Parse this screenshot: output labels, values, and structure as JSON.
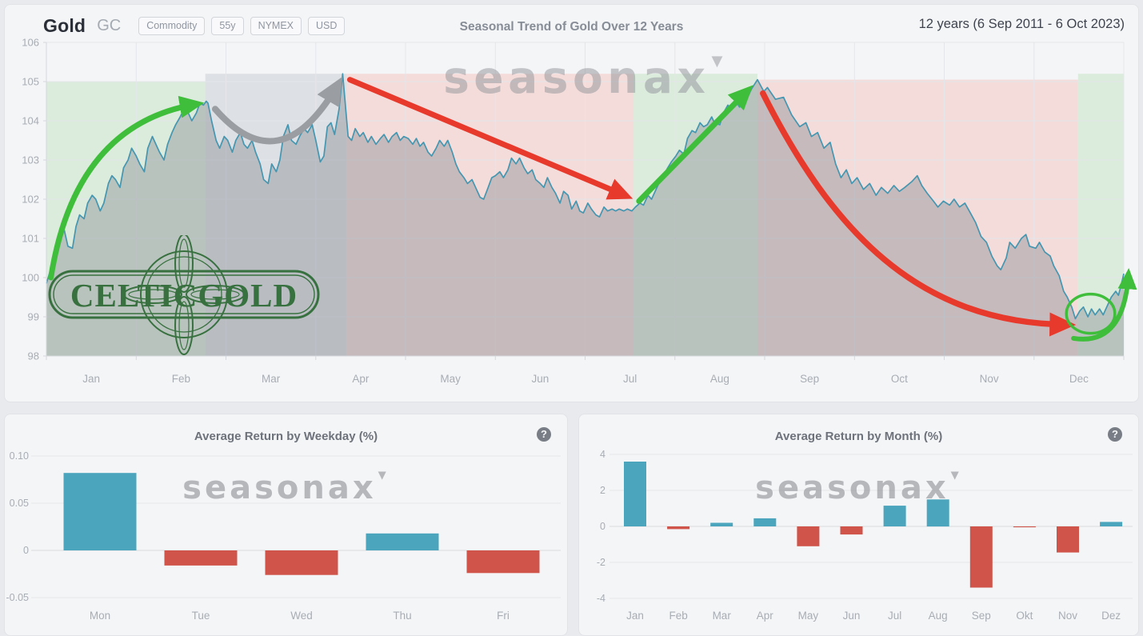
{
  "header": {
    "instrument": "Gold",
    "symbol": "GC",
    "badges": [
      "Commodity",
      "55y",
      "NYMEX",
      "USD"
    ],
    "title": "Seasonal Trend of Gold Over 12 Years",
    "range_label": "12 years (6 Sep 2011 - 6 Oct 2023)"
  },
  "watermarks": {
    "seasonax": "seasonax",
    "celticgold": "CELTICGOLD"
  },
  "colors": {
    "line": "#4596b0",
    "area": "rgba(125,132,140,0.38)",
    "band_green": "rgba(173,219,170,0.35)",
    "band_gray": "rgba(183,188,198,0.38)",
    "band_red": "rgba(244,180,172,0.38)",
    "arrow_green": "#3fbe3b",
    "arrow_gray": "#9a9da1",
    "arrow_red": "#e83a2c",
    "bar_positive": "#4aa5bd",
    "bar_negative": "#d0544a",
    "grid": "#e4e6ea",
    "axis": "#d5d8dc",
    "tick_text": "#a8adb4"
  },
  "chart_data": [
    {
      "type": "line",
      "title": "Seasonal Trend of Gold Over 12 Years",
      "x_labels": [
        "Jan",
        "Feb",
        "Mar",
        "Apr",
        "May",
        "Jun",
        "Jul",
        "Aug",
        "Sep",
        "Oct",
        "Nov",
        "Dec"
      ],
      "y_ticks": [
        106,
        105,
        104,
        103,
        102,
        101,
        100,
        99,
        98
      ],
      "ylim": [
        98,
        106
      ],
      "x_range_months": [
        0,
        12
      ],
      "bands": [
        {
          "from": 0.0,
          "to": 1.77,
          "top": 105.0,
          "color": "band_green"
        },
        {
          "from": 1.77,
          "to": 3.34,
          "top": 105.2,
          "color": "band_gray"
        },
        {
          "from": 3.34,
          "to": 6.54,
          "top": 105.2,
          "color": "band_red"
        },
        {
          "from": 6.54,
          "to": 7.92,
          "top": 105.2,
          "color": "band_green"
        },
        {
          "from": 7.92,
          "to": 11.49,
          "top": 105.05,
          "color": "band_red"
        },
        {
          "from": 11.49,
          "to": 12.0,
          "top": 105.2,
          "color": "band_green"
        }
      ],
      "arrows": [
        {
          "name": "jan-feb-rally",
          "shape": "quad",
          "color": "arrow_green",
          "width": 7,
          "pts": [
            [
              0.05,
              100.0
            ],
            [
              0.32,
              103.9
            ],
            [
              1.66,
              104.42
            ]
          ]
        },
        {
          "name": "feb-apr-consolidation",
          "shape": "quad",
          "color": "arrow_gray",
          "width": 8,
          "pts": [
            [
              1.88,
              104.3
            ],
            [
              2.6,
              102.4
            ],
            [
              3.24,
              104.9
            ]
          ]
        },
        {
          "name": "apr-jul-decline",
          "shape": "line",
          "color": "arrow_red",
          "width": 7,
          "pts": [
            [
              3.38,
              105.05
            ],
            [
              6.44,
              102.1
            ]
          ]
        },
        {
          "name": "jul-aug-rally",
          "shape": "line",
          "color": "arrow_green",
          "width": 7,
          "pts": [
            [
              6.6,
              101.95
            ],
            [
              7.8,
              104.75
            ]
          ]
        },
        {
          "name": "sep-dec-decline",
          "shape": "cubic",
          "color": "arrow_red",
          "width": 7.5,
          "pts": [
            [
              7.98,
              104.7
            ],
            [
              8.75,
              101.2
            ],
            [
              9.7,
              98.85
            ],
            [
              11.36,
              98.8
            ]
          ]
        },
        {
          "name": "dec-yearend-rally",
          "shape": "cubic",
          "color": "arrow_green",
          "width": 6,
          "pts": [
            [
              11.44,
              98.45
            ],
            [
              11.85,
              98.3
            ],
            [
              12.02,
              99.0
            ],
            [
              12.05,
              100.05
            ]
          ]
        }
      ],
      "highlight_ellipse": {
        "center": [
          11.63,
          99.08
        ],
        "rx_months": 0.27,
        "ry_units": 0.5,
        "color": "arrow_green",
        "width": 3.5
      },
      "points": [
        [
          0.0,
          99.85
        ],
        [
          0.06,
          100.3
        ],
        [
          0.11,
          100.9
        ],
        [
          0.15,
          101.1
        ],
        [
          0.2,
          101.2
        ],
        [
          0.24,
          100.8
        ],
        [
          0.29,
          100.75
        ],
        [
          0.33,
          101.3
        ],
        [
          0.37,
          101.6
        ],
        [
          0.42,
          101.5
        ],
        [
          0.46,
          101.9
        ],
        [
          0.51,
          102.1
        ],
        [
          0.55,
          102.0
        ],
        [
          0.6,
          101.7
        ],
        [
          0.64,
          101.9
        ],
        [
          0.69,
          102.4
        ],
        [
          0.73,
          102.6
        ],
        [
          0.77,
          102.5
        ],
        [
          0.82,
          102.3
        ],
        [
          0.86,
          102.8
        ],
        [
          0.91,
          103.0
        ],
        [
          0.95,
          103.3
        ],
        [
          1.0,
          103.1
        ],
        [
          1.04,
          102.9
        ],
        [
          1.09,
          102.7
        ],
        [
          1.13,
          103.3
        ],
        [
          1.18,
          103.6
        ],
        [
          1.22,
          103.4
        ],
        [
          1.26,
          103.2
        ],
        [
          1.31,
          103.0
        ],
        [
          1.35,
          103.4
        ],
        [
          1.4,
          103.7
        ],
        [
          1.44,
          103.9
        ],
        [
          1.49,
          104.1
        ],
        [
          1.53,
          104.3
        ],
        [
          1.58,
          104.2
        ],
        [
          1.62,
          104.0
        ],
        [
          1.67,
          104.2
        ],
        [
          1.71,
          104.45
        ],
        [
          1.75,
          104.4
        ],
        [
          1.78,
          104.5
        ],
        [
          1.8,
          104.45
        ],
        [
          1.84,
          104.0
        ],
        [
          1.89,
          103.5
        ],
        [
          1.93,
          103.3
        ],
        [
          1.98,
          103.6
        ],
        [
          2.02,
          103.5
        ],
        [
          2.07,
          103.2
        ],
        [
          2.11,
          103.5
        ],
        [
          2.16,
          103.7
        ],
        [
          2.2,
          103.4
        ],
        [
          2.24,
          103.3
        ],
        [
          2.29,
          103.5
        ],
        [
          2.33,
          103.2
        ],
        [
          2.38,
          102.9
        ],
        [
          2.42,
          102.5
        ],
        [
          2.47,
          102.4
        ],
        [
          2.51,
          102.9
        ],
        [
          2.56,
          102.7
        ],
        [
          2.6,
          103.0
        ],
        [
          2.64,
          103.6
        ],
        [
          2.69,
          103.9
        ],
        [
          2.73,
          103.5
        ],
        [
          2.78,
          103.4
        ],
        [
          2.82,
          103.6
        ],
        [
          2.87,
          103.8
        ],
        [
          2.91,
          103.7
        ],
        [
          2.96,
          103.9
        ],
        [
          3.0,
          103.5
        ],
        [
          3.05,
          102.95
        ],
        [
          3.09,
          103.1
        ],
        [
          3.13,
          103.85
        ],
        [
          3.17,
          103.95
        ],
        [
          3.21,
          103.65
        ],
        [
          3.26,
          104.3
        ],
        [
          3.3,
          105.2
        ],
        [
          3.33,
          104.4
        ],
        [
          3.36,
          103.6
        ],
        [
          3.4,
          103.5
        ],
        [
          3.44,
          103.8
        ],
        [
          3.49,
          103.6
        ],
        [
          3.53,
          103.7
        ],
        [
          3.58,
          103.45
        ],
        [
          3.62,
          103.6
        ],
        [
          3.67,
          103.4
        ],
        [
          3.72,
          103.55
        ],
        [
          3.76,
          103.65
        ],
        [
          3.81,
          103.45
        ],
        [
          3.85,
          103.6
        ],
        [
          3.9,
          103.7
        ],
        [
          3.94,
          103.5
        ],
        [
          3.98,
          103.6
        ],
        [
          4.03,
          103.55
        ],
        [
          4.08,
          103.4
        ],
        [
          4.12,
          103.55
        ],
        [
          4.16,
          103.35
        ],
        [
          4.2,
          103.45
        ],
        [
          4.25,
          103.2
        ],
        [
          4.29,
          103.1
        ],
        [
          4.34,
          103.3
        ],
        [
          4.38,
          103.5
        ],
        [
          4.43,
          103.35
        ],
        [
          4.47,
          103.5
        ],
        [
          4.52,
          103.2
        ],
        [
          4.56,
          102.9
        ],
        [
          4.6,
          102.7
        ],
        [
          4.65,
          102.55
        ],
        [
          4.69,
          102.4
        ],
        [
          4.74,
          102.5
        ],
        [
          4.78,
          102.3
        ],
        [
          4.83,
          102.05
        ],
        [
          4.87,
          102.0
        ],
        [
          4.92,
          102.3
        ],
        [
          4.96,
          102.55
        ],
        [
          5.0,
          102.6
        ],
        [
          5.05,
          102.7
        ],
        [
          5.09,
          102.55
        ],
        [
          5.14,
          102.75
        ],
        [
          5.18,
          103.05
        ],
        [
          5.23,
          102.9
        ],
        [
          5.27,
          103.05
        ],
        [
          5.32,
          102.8
        ],
        [
          5.36,
          102.65
        ],
        [
          5.41,
          102.75
        ],
        [
          5.45,
          102.5
        ],
        [
          5.5,
          102.4
        ],
        [
          5.54,
          102.3
        ],
        [
          5.58,
          102.55
        ],
        [
          5.63,
          102.3
        ],
        [
          5.67,
          102.15
        ],
        [
          5.72,
          101.9
        ],
        [
          5.76,
          102.2
        ],
        [
          5.81,
          102.1
        ],
        [
          5.85,
          101.75
        ],
        [
          5.9,
          101.95
        ],
        [
          5.94,
          101.7
        ],
        [
          5.98,
          101.65
        ],
        [
          6.03,
          101.9
        ],
        [
          6.07,
          101.75
        ],
        [
          6.12,
          101.6
        ],
        [
          6.16,
          101.55
        ],
        [
          6.21,
          101.8
        ],
        [
          6.25,
          101.7
        ],
        [
          6.3,
          101.75
        ],
        [
          6.34,
          101.7
        ],
        [
          6.38,
          101.75
        ],
        [
          6.43,
          101.7
        ],
        [
          6.47,
          101.75
        ],
        [
          6.52,
          101.7
        ],
        [
          6.56,
          101.8
        ],
        [
          6.61,
          101.9
        ],
        [
          6.65,
          101.85
        ],
        [
          6.7,
          102.1
        ],
        [
          6.74,
          102.0
        ],
        [
          6.83,
          102.45
        ],
        [
          6.92,
          102.8
        ],
        [
          6.96,
          102.95
        ],
        [
          7.01,
          103.1
        ],
        [
          7.05,
          103.25
        ],
        [
          7.1,
          103.15
        ],
        [
          7.14,
          103.55
        ],
        [
          7.19,
          103.75
        ],
        [
          7.23,
          103.7
        ],
        [
          7.28,
          103.95
        ],
        [
          7.32,
          103.85
        ],
        [
          7.36,
          103.9
        ],
        [
          7.41,
          104.1
        ],
        [
          7.44,
          103.95
        ],
        [
          7.5,
          103.9
        ],
        [
          7.54,
          104.2
        ],
        [
          7.59,
          104.4
        ],
        [
          7.63,
          104.3
        ],
        [
          7.68,
          104.5
        ],
        [
          7.72,
          104.35
        ],
        [
          7.77,
          104.45
        ],
        [
          7.81,
          104.6
        ],
        [
          7.85,
          104.8
        ],
        [
          7.92,
          105.05
        ],
        [
          7.99,
          104.75
        ],
        [
          8.03,
          104.85
        ],
        [
          8.12,
          104.55
        ],
        [
          8.21,
          104.6
        ],
        [
          8.3,
          104.15
        ],
        [
          8.39,
          103.85
        ],
        [
          8.46,
          103.95
        ],
        [
          8.52,
          103.6
        ],
        [
          8.59,
          103.7
        ],
        [
          8.66,
          103.3
        ],
        [
          8.73,
          103.45
        ],
        [
          8.79,
          102.9
        ],
        [
          8.85,
          102.55
        ],
        [
          8.91,
          102.75
        ],
        [
          8.97,
          102.4
        ],
        [
          9.03,
          102.55
        ],
        [
          9.1,
          102.25
        ],
        [
          9.17,
          102.4
        ],
        [
          9.24,
          102.1
        ],
        [
          9.3,
          102.3
        ],
        [
          9.37,
          102.15
        ],
        [
          9.44,
          102.35
        ],
        [
          9.5,
          102.2
        ],
        [
          9.56,
          102.3
        ],
        [
          9.64,
          102.45
        ],
        [
          9.7,
          102.6
        ],
        [
          9.75,
          102.35
        ],
        [
          9.81,
          102.15
        ],
        [
          9.88,
          101.95
        ],
        [
          9.93,
          101.8
        ],
        [
          9.99,
          101.95
        ],
        [
          10.06,
          101.85
        ],
        [
          10.11,
          102.0
        ],
        [
          10.17,
          101.8
        ],
        [
          10.23,
          101.9
        ],
        [
          10.29,
          101.65
        ],
        [
          10.35,
          101.4
        ],
        [
          10.41,
          101.05
        ],
        [
          10.47,
          100.9
        ],
        [
          10.53,
          100.55
        ],
        [
          10.59,
          100.3
        ],
        [
          10.63,
          100.2
        ],
        [
          10.69,
          100.5
        ],
        [
          10.73,
          100.9
        ],
        [
          10.79,
          100.75
        ],
        [
          10.86,
          101.0
        ],
        [
          10.91,
          101.1
        ],
        [
          10.95,
          100.8
        ],
        [
          11.02,
          100.75
        ],
        [
          11.06,
          100.9
        ],
        [
          11.12,
          100.65
        ],
        [
          11.18,
          100.55
        ],
        [
          11.22,
          100.3
        ],
        [
          11.28,
          100.05
        ],
        [
          11.33,
          99.65
        ],
        [
          11.37,
          99.5
        ],
        [
          11.42,
          99.25
        ],
        [
          11.46,
          98.95
        ],
        [
          11.51,
          99.15
        ],
        [
          11.55,
          99.25
        ],
        [
          11.6,
          99.0
        ],
        [
          11.64,
          99.2
        ],
        [
          11.68,
          99.05
        ],
        [
          11.73,
          99.2
        ],
        [
          11.77,
          99.05
        ],
        [
          11.82,
          99.3
        ],
        [
          11.86,
          99.5
        ],
        [
          11.91,
          99.65
        ],
        [
          11.94,
          99.55
        ],
        [
          11.97,
          99.8
        ],
        [
          12.0,
          100.1
        ]
      ]
    },
    {
      "type": "bar",
      "title": "Average Return by Weekday (%)",
      "categories": [
        "Mon",
        "Tue",
        "Wed",
        "Thu",
        "Fri"
      ],
      "values": [
        0.082,
        -0.016,
        -0.026,
        0.018,
        -0.024
      ],
      "y_ticks": [
        0.1,
        0.05,
        0,
        -0.05
      ],
      "tick_labels": [
        "0.10",
        "0.05",
        "0",
        "-0.05"
      ],
      "ylim": [
        -0.07,
        0.12
      ],
      "grid": true,
      "legend": "none"
    },
    {
      "type": "bar",
      "title": "Average Return by Month (%)",
      "categories": [
        "Jan",
        "Feb",
        "Mar",
        "Apr",
        "May",
        "Jun",
        "Jul",
        "Aug",
        "Sep",
        "Okt",
        "Nov",
        "Dez"
      ],
      "values": [
        3.6,
        -0.15,
        0.2,
        0.45,
        -1.1,
        -0.45,
        1.15,
        1.5,
        -3.4,
        -0.05,
        -1.45,
        0.25
      ],
      "y_ticks": [
        4,
        2,
        0,
        -2,
        -4
      ],
      "tick_labels": [
        "4",
        "2",
        "0",
        "-2",
        "-4"
      ],
      "ylim": [
        -4.6,
        4.6
      ],
      "grid": true,
      "legend": "none"
    }
  ]
}
